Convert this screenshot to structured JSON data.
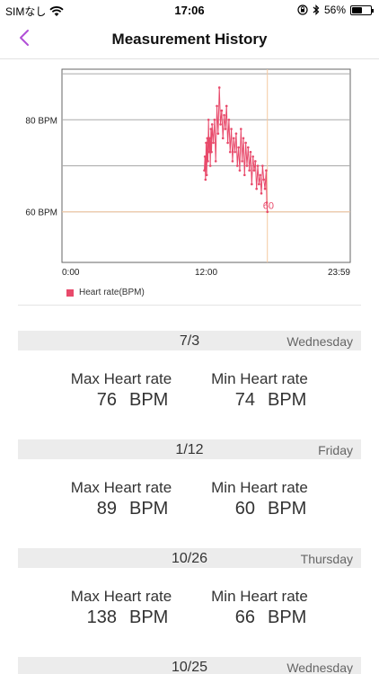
{
  "status_bar": {
    "carrier": "SIMなし",
    "time": "17:06",
    "battery": "56%",
    "battery_level": 0.56
  },
  "nav": {
    "title": "Measurement History",
    "back_icon": "chevron-left-icon",
    "accent_color": "#b14fd6"
  },
  "chart_data": {
    "type": "line",
    "x_tick_labels": [
      "0:00",
      "12:00",
      "23:59"
    ],
    "y_tick_labels": [
      "60 BPM",
      "80 BPM"
    ],
    "xlim": [
      0,
      24
    ],
    "ylim": [
      49,
      91
    ],
    "gridlines_y": [
      60,
      70,
      80,
      90
    ],
    "legend_placement": "bottom-left",
    "series": [
      {
        "name": "Heart rate(BPM)",
        "color": "#e84a6b",
        "x": [
          11.85,
          11.9,
          11.95,
          12.0,
          12.05,
          12.1,
          12.15,
          12.2,
          12.25,
          12.3,
          12.35,
          12.4,
          12.45,
          12.5,
          12.6,
          12.7,
          12.8,
          12.9,
          13.0,
          13.1,
          13.2,
          13.3,
          13.4,
          13.5,
          13.6,
          13.7,
          13.8,
          13.9,
          14.0,
          14.1,
          14.2,
          14.3,
          14.4,
          14.5,
          14.6,
          14.7,
          14.8,
          14.9,
          15.0,
          15.1,
          15.2,
          15.3,
          15.4,
          15.5,
          15.6,
          15.7,
          15.8,
          15.9,
          16.0,
          16.1,
          16.2,
          16.3,
          16.4,
          16.5,
          16.6,
          16.7,
          16.8,
          16.9,
          17.0,
          17.05,
          17.1
        ],
        "y": [
          69,
          72,
          67,
          75,
          68,
          76,
          71,
          80,
          73,
          76,
          70,
          78,
          73,
          79,
          75,
          80,
          71,
          83,
          77,
          87,
          79,
          82,
          76,
          81,
          78,
          83,
          75,
          80,
          73,
          78,
          71,
          76,
          73,
          77,
          70,
          74,
          69,
          78,
          71,
          76,
          68,
          75,
          70,
          74,
          69,
          73,
          66,
          72,
          69,
          71,
          65,
          70,
          66,
          68,
          64,
          70,
          67,
          65,
          69,
          62,
          60
        ]
      }
    ],
    "annotation": "60",
    "annotation_color": "#e84a6b",
    "cursor_x": 17.1,
    "cursor_y": 60,
    "cursor_color": "#f5c8a0"
  },
  "records": [
    {
      "date": "7/3",
      "weekday": "Wednesday",
      "max_label": "Max Heart rate",
      "max_value": "76",
      "min_label": "Min Heart rate",
      "min_value": "74",
      "unit": "BPM"
    },
    {
      "date": "1/12",
      "weekday": "Friday",
      "max_label": "Max Heart rate",
      "max_value": "89",
      "min_label": "Min Heart rate",
      "min_value": "60",
      "unit": "BPM"
    },
    {
      "date": "10/26",
      "weekday": "Thursday",
      "max_label": "Max Heart rate",
      "max_value": "138",
      "min_label": "Min Heart rate",
      "min_value": "66",
      "unit": "BPM"
    },
    {
      "date": "10/25",
      "weekday": "Wednesday"
    }
  ]
}
